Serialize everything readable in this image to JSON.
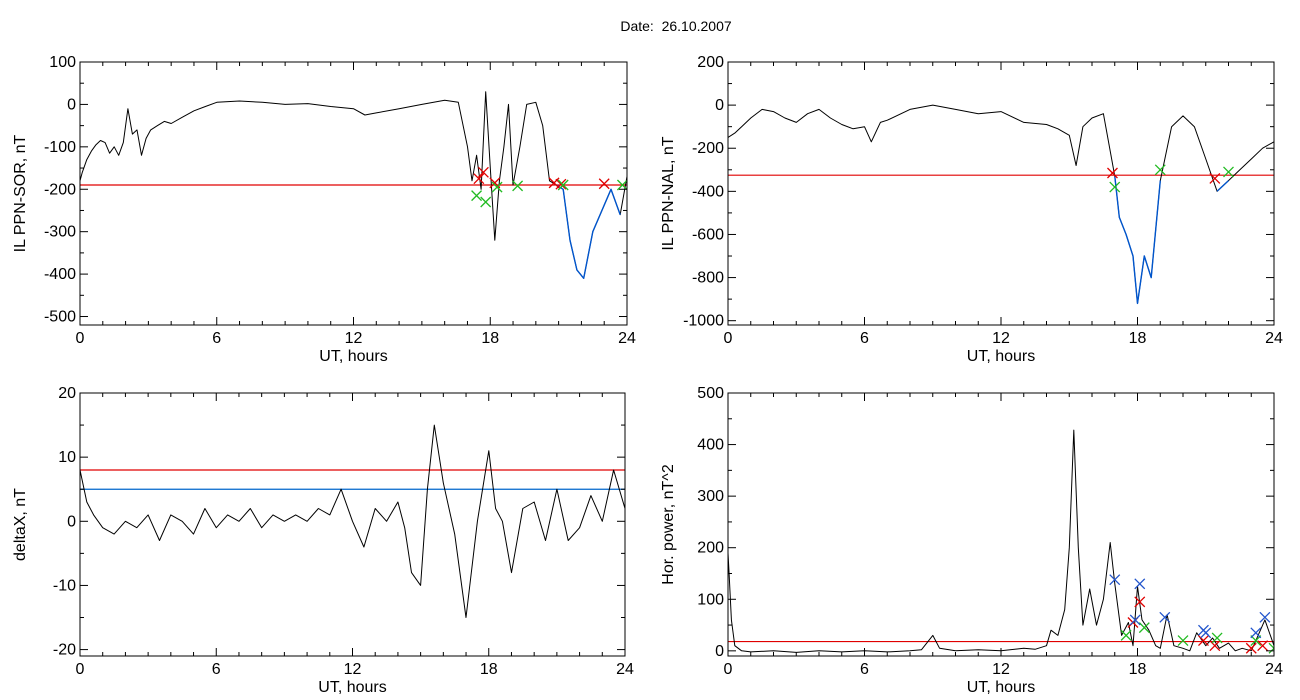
{
  "page": {
    "title_prefix": "Date:",
    "date": "26.10.2007"
  },
  "colors": {
    "signal": "#000000",
    "threshold_red": "#e00000",
    "threshold_blue": "#0066cc",
    "segment_blue": "#0055cc",
    "marker_red": "#e00000",
    "marker_green": "#22bb22",
    "marker_blue": "#2255cc"
  },
  "chart_data": [
    {
      "id": "il-sor",
      "type": "line",
      "xlabel": "UT, hours",
      "ylabel": "IL PPN-SOR, nT",
      "xlim": [
        0,
        24
      ],
      "ylim": [
        -520,
        100
      ],
      "xticks": [
        0,
        6,
        12,
        18,
        24
      ],
      "yticks": [
        100,
        0,
        -100,
        -200,
        -300,
        -400,
        -500
      ],
      "xtick_labels": [
        "0",
        "6",
        "12",
        "18",
        "24"
      ],
      "ytick_labels": [
        "100",
        "0",
        "-100",
        "-200",
        "-300",
        "-400",
        "-500"
      ],
      "threshold_lines": [
        {
          "y": -190,
          "color": "red"
        }
      ],
      "series": [
        {
          "color": "black",
          "x": [
            0,
            0.1,
            0.3,
            0.5,
            0.7,
            0.9,
            1.1,
            1.3,
            1.5,
            1.7,
            1.9,
            2.1,
            2.3,
            2.5,
            2.7,
            2.9,
            3.1,
            3.4,
            3.7,
            4,
            4.5,
            5,
            5.5,
            6,
            7,
            8,
            9,
            10,
            11,
            12,
            12.5,
            13,
            14,
            15,
            16,
            16.6,
            17,
            17.2,
            17.4,
            17.6,
            17.8,
            18,
            18.2,
            18.4,
            18.6,
            18.8,
            19,
            19.3,
            19.6,
            20,
            20.3,
            20.6,
            20.9,
            21.2,
            21.5,
            21.8,
            22.1,
            22.5,
            22.9,
            23.3,
            23.7,
            24
          ],
          "y": [
            -180,
            -160,
            -130,
            -110,
            -95,
            -85,
            -90,
            -115,
            -100,
            -120,
            -90,
            -10,
            -70,
            -60,
            -120,
            -80,
            -60,
            -50,
            -40,
            -45,
            -30,
            -15,
            -5,
            5,
            8,
            5,
            0,
            2,
            -5,
            -10,
            -25,
            -20,
            -10,
            0,
            10,
            5,
            -100,
            -180,
            -120,
            -200,
            30,
            -150,
            -320,
            -180,
            -100,
            0,
            -190,
            -100,
            0,
            5,
            -50,
            -180,
            -190,
            -200,
            -320,
            -390,
            -410,
            -300,
            -250,
            -200,
            -260,
            -170
          ]
        },
        {
          "color": "blue",
          "x": [
            20.9,
            21.2,
            21.5,
            21.8,
            22.1,
            22.5,
            22.9,
            23.3,
            23.7
          ],
          "y": [
            -190,
            -200,
            -320,
            -390,
            -410,
            -300,
            -250,
            -200,
            -260
          ]
        }
      ],
      "markers": {
        "red_x": [
          [
            17.5,
            -175
          ],
          [
            17.7,
            -160
          ],
          [
            18.2,
            -185
          ],
          [
            20.8,
            -185
          ],
          [
            21.1,
            -188
          ],
          [
            23.0,
            -187
          ]
        ],
        "green_x": [
          [
            17.4,
            -215
          ],
          [
            17.8,
            -230
          ],
          [
            18.3,
            -195
          ],
          [
            19.2,
            -192
          ],
          [
            21.2,
            -190
          ],
          [
            23.8,
            -190
          ]
        ]
      }
    },
    {
      "id": "il-nal",
      "type": "line",
      "xlabel": "UT, hours",
      "ylabel": "IL PPN-NAL, nT",
      "xlim": [
        0,
        24
      ],
      "ylim": [
        -1020,
        200
      ],
      "xticks": [
        0,
        6,
        12,
        18,
        24
      ],
      "yticks": [
        200,
        0,
        -200,
        -400,
        -600,
        -800,
        -1000
      ],
      "xtick_labels": [
        "0",
        "6",
        "12",
        "18",
        "24"
      ],
      "ytick_labels": [
        "200",
        "0",
        "-200",
        "-400",
        "-600",
        "-800",
        "-1000"
      ],
      "threshold_lines": [
        {
          "y": -325,
          "color": "red"
        }
      ],
      "series": [
        {
          "color": "black",
          "x": [
            0,
            0.3,
            0.6,
            1,
            1.5,
            2,
            2.5,
            3,
            3.5,
            4,
            4.5,
            5,
            5.5,
            6,
            6.3,
            6.7,
            7,
            8,
            9,
            10,
            11,
            12,
            13,
            14,
            14.5,
            15,
            15.3,
            15.6,
            16,
            16.5,
            17,
            17.2,
            17.5,
            17.8,
            18,
            18.3,
            18.6,
            19,
            19.5,
            20,
            20.5,
            21,
            21.5,
            22,
            22.5,
            23,
            23.5,
            24
          ],
          "y": [
            -150,
            -130,
            -100,
            -60,
            -20,
            -30,
            -60,
            -80,
            -40,
            -20,
            -60,
            -90,
            -110,
            -100,
            -170,
            -80,
            -70,
            -20,
            0,
            -20,
            -40,
            -30,
            -80,
            -90,
            -110,
            -140,
            -280,
            -100,
            -60,
            -40,
            -330,
            -520,
            -600,
            -700,
            -920,
            -700,
            -800,
            -350,
            -100,
            -50,
            -100,
            -250,
            -400,
            -350,
            -300,
            -250,
            -200,
            -170
          ]
        },
        {
          "color": "blue",
          "x": [
            17.0,
            17.2,
            17.5,
            17.8,
            18.0,
            18.3,
            18.6,
            19.0
          ],
          "y": [
            -330,
            -520,
            -600,
            -700,
            -920,
            -700,
            -800,
            -350
          ]
        },
        {
          "color": "blue",
          "x": [
            21.5,
            22.0
          ],
          "y": [
            -400,
            -350
          ]
        }
      ],
      "markers": {
        "red_x": [
          [
            16.9,
            -315
          ],
          [
            21.4,
            -340
          ]
        ],
        "green_x": [
          [
            17.0,
            -380
          ],
          [
            19.0,
            -300
          ],
          [
            22.0,
            -310
          ]
        ]
      }
    },
    {
      "id": "delta-x",
      "type": "line",
      "xlabel": "UT, hours",
      "ylabel": "deltaX, nT",
      "xlim": [
        0,
        24
      ],
      "ylim": [
        -21,
        20
      ],
      "xticks": [
        0,
        6,
        12,
        18,
        24
      ],
      "yticks": [
        20,
        10,
        0,
        -10,
        -20
      ],
      "xtick_labels": [
        "0",
        "6",
        "12",
        "18",
        "24"
      ],
      "ytick_labels": [
        "20",
        "10",
        "0",
        "-10",
        "-20"
      ],
      "threshold_lines": [
        {
          "y": 8,
          "color": "red"
        },
        {
          "y": 5,
          "color": "blue"
        }
      ],
      "series": [
        {
          "color": "black",
          "x": [
            0,
            0.3,
            0.6,
            1,
            1.5,
            2,
            2.5,
            3,
            3.5,
            4,
            4.5,
            5,
            5.5,
            6,
            6.5,
            7,
            7.5,
            8,
            8.5,
            9,
            9.5,
            10,
            10.5,
            11,
            11.5,
            12,
            12.5,
            13,
            13.5,
            14,
            14.3,
            14.6,
            15,
            15.3,
            15.6,
            16,
            16.5,
            17,
            17.5,
            18,
            18.3,
            18.6,
            19,
            19.5,
            20,
            20.5,
            21,
            21.5,
            22,
            22.5,
            23,
            23.5,
            24
          ],
          "y": [
            8,
            3,
            1,
            -1,
            -2,
            0,
            -1,
            1,
            -3,
            1,
            0,
            -2,
            2,
            -1,
            1,
            0,
            2,
            -1,
            1,
            0,
            1,
            0,
            2,
            1,
            5,
            0,
            -4,
            2,
            0,
            3,
            -1,
            -8,
            -10,
            5,
            15,
            6,
            -2,
            -15,
            0,
            11,
            2,
            0,
            -8,
            2,
            3,
            -3,
            5,
            -3,
            -1,
            4,
            0,
            8,
            2
          ]
        }
      ],
      "markers": {
        "red_x": [],
        "green_x": []
      }
    },
    {
      "id": "hor-power",
      "type": "line",
      "xlabel": "UT, hours",
      "ylabel": "Hor. power, nT^2",
      "xlim": [
        0,
        24
      ],
      "ylim": [
        -10,
        500
      ],
      "xticks": [
        0,
        6,
        12,
        18,
        24
      ],
      "yticks": [
        500,
        400,
        300,
        200,
        100,
        0
      ],
      "xtick_labels": [
        "0",
        "6",
        "12",
        "18",
        "24"
      ],
      "ytick_labels": [
        "500",
        "400",
        "300",
        "200",
        "100",
        "0"
      ],
      "threshold_lines": [
        {
          "y": 18,
          "color": "red"
        }
      ],
      "series": [
        {
          "color": "black",
          "x": [
            0,
            0.05,
            0.15,
            0.3,
            0.6,
            1,
            2,
            3,
            4,
            5,
            6,
            7,
            8,
            8.5,
            9,
            9.3,
            10,
            11,
            12,
            13,
            13.5,
            14,
            14.2,
            14.5,
            14.8,
            15,
            15.2,
            15.4,
            15.6,
            15.9,
            16.2,
            16.5,
            16.8,
            17,
            17.3,
            17.6,
            17.8,
            18,
            18.2,
            18.5,
            18.8,
            19,
            19.3,
            19.6,
            20,
            20.3,
            20.6,
            21,
            21.3,
            21.6,
            22,
            22.3,
            22.6,
            23,
            23.3,
            23.6,
            24
          ],
          "y": [
            190,
            150,
            60,
            10,
            0,
            -2,
            0,
            -3,
            0,
            -2,
            0,
            -2,
            0,
            2,
            30,
            5,
            0,
            2,
            0,
            5,
            3,
            10,
            40,
            30,
            80,
            200,
            428,
            200,
            50,
            120,
            50,
            100,
            210,
            130,
            30,
            55,
            10,
            125,
            60,
            40,
            10,
            5,
            70,
            10,
            5,
            0,
            35,
            10,
            25,
            5,
            15,
            0,
            5,
            0,
            30,
            60,
            10
          ]
        }
      ],
      "markers": {
        "red_x": [
          [
            17.8,
            55
          ],
          [
            18.1,
            95
          ],
          [
            20.9,
            20
          ],
          [
            21.4,
            10
          ],
          [
            23.0,
            5
          ],
          [
            23.5,
            10
          ]
        ],
        "green_x": [
          [
            17.5,
            30
          ],
          [
            18.3,
            45
          ],
          [
            20.0,
            20
          ],
          [
            21.5,
            25
          ],
          [
            23.2,
            20
          ],
          [
            24.0,
            5
          ]
        ],
        "blue_x": [
          [
            17.0,
            138
          ],
          [
            17.9,
            60
          ],
          [
            18.1,
            130
          ],
          [
            19.2,
            65
          ],
          [
            20.9,
            40
          ],
          [
            21.0,
            35
          ],
          [
            23.2,
            35
          ],
          [
            23.6,
            65
          ]
        ]
      }
    }
  ]
}
